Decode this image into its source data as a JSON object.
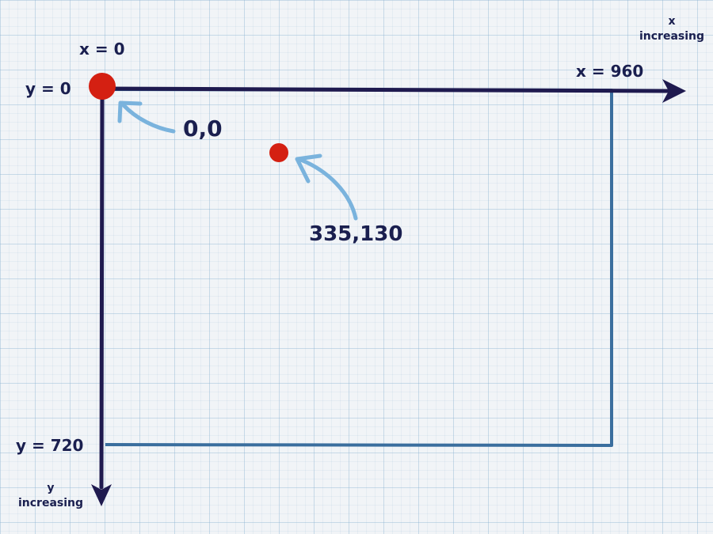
{
  "labels": {
    "x_start": "x = 0",
    "y_start": "y = 0",
    "x_end": "x = 960",
    "y_end": "y = 720",
    "origin": "0,0",
    "point": "335,130",
    "x_direction": [
      "x",
      "increasing"
    ],
    "y_direction": [
      "y",
      "increasing"
    ]
  },
  "canvas": {
    "width": 960,
    "height": 720
  },
  "points": [
    {
      "name": "origin",
      "x": 0,
      "y": 0
    },
    {
      "name": "sample-point",
      "x": 335,
      "y": 130
    }
  ],
  "colors": {
    "axis": "#1f1a4f",
    "rectangle": "#3a6e9e",
    "point": "#d42012",
    "annotation_arrow": "#7ab3dd",
    "text": "#1a1f4f"
  }
}
